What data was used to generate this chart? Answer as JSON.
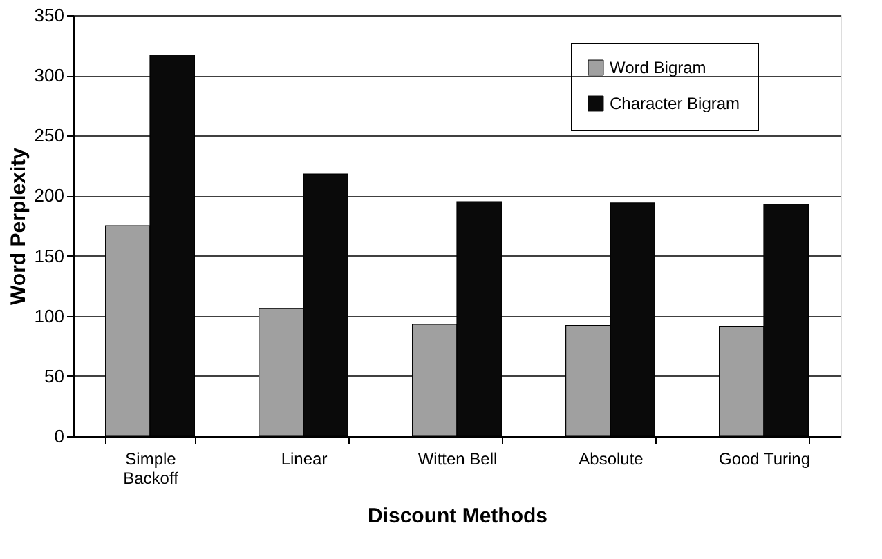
{
  "chart_data": {
    "type": "bar",
    "xlabel": "Discount Methods",
    "ylabel": "Word Perplexity",
    "categories": [
      "Simple\nBackoff",
      "Linear",
      "Witten Bell",
      "Absolute",
      "Good Turing"
    ],
    "series": [
      {
        "name": "Word Bigram",
        "color": "#a0a0a0",
        "values": [
          175,
          106,
          93,
          92,
          91
        ]
      },
      {
        "name": "Character Bigram",
        "color": "#0a0a0a",
        "values": [
          317,
          218,
          195,
          194,
          193
        ]
      }
    ],
    "ylim": [
      0,
      350
    ],
    "yticks": [
      0,
      50,
      100,
      150,
      200,
      250,
      300,
      350
    ],
    "grid": "y",
    "legend": "top"
  }
}
